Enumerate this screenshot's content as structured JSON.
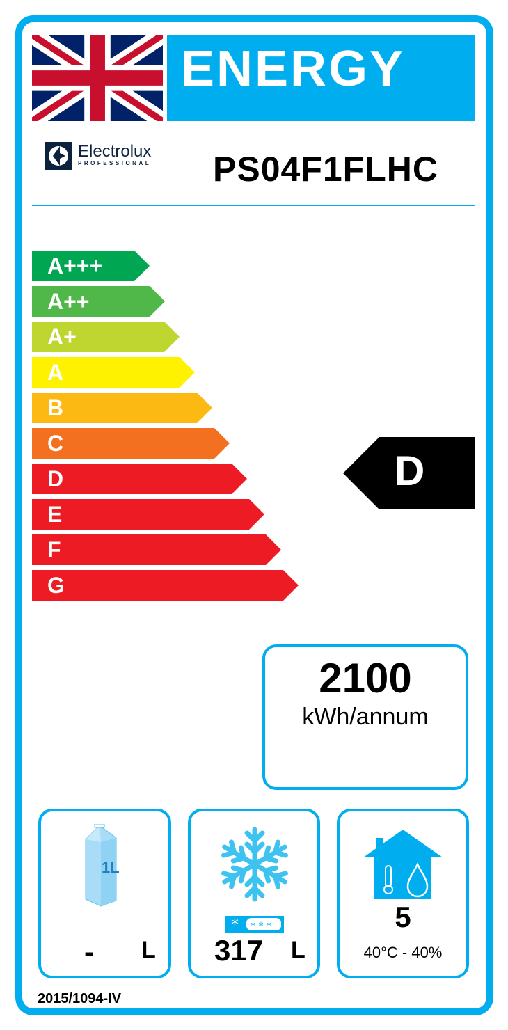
{
  "header": {
    "title": "ENERGY",
    "brand": "Electrolux",
    "brand_sub": "PROFESSIONAL",
    "model": "PS04F1FLHC"
  },
  "scale": [
    {
      "label": "A+++",
      "color": "#00A651"
    },
    {
      "label": "A++",
      "color": "#50B848"
    },
    {
      "label": "A+",
      "color": "#BED62F"
    },
    {
      "label": "A",
      "color": "#FFF200"
    },
    {
      "label": "B",
      "color": "#FDB913"
    },
    {
      "label": "C",
      "color": "#F37021"
    },
    {
      "label": "D",
      "color": "#ED1C24"
    },
    {
      "label": "E",
      "color": "#ED1C24"
    },
    {
      "label": "F",
      "color": "#ED1C24"
    },
    {
      "label": "G",
      "color": "#ED1C24"
    }
  ],
  "rating": "D",
  "consumption": {
    "value": "2100",
    "unit": "kWh/annum"
  },
  "chilled": {
    "icon_label": "1L",
    "value": "-",
    "unit": "L"
  },
  "frozen": {
    "value": "317",
    "unit": "L"
  },
  "climate": {
    "class": "5",
    "conditions": "40°C - 40%"
  },
  "regulation": "2015/1094-IV",
  "accent": "#00AEEF"
}
